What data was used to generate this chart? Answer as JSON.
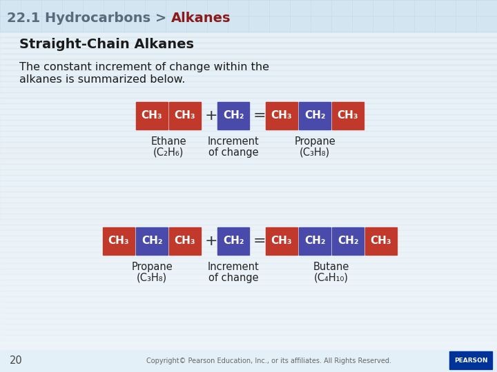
{
  "bg_top_color": "#c8dcea",
  "bg_main_color": "#edf4f9",
  "title_prefix": "22.1 Hydrocarbons > ",
  "title_suffix": "Alkanes",
  "title_prefix_color": "#5a6a7a",
  "title_suffix_color": "#8b1a1a",
  "subtitle": "Straight-Chain Alkanes",
  "body_line1": "The constant increment of change within the",
  "body_line2": "alkanes is summarized below.",
  "red_color": "#c0392b",
  "blue_color": "#4a4aaa",
  "text_color": "#333333",
  "footer_text": "Copyright© Pearson Education, Inc., or its affiliates. All Rights Reserved.",
  "page_number": "20",
  "pearson_bg": "#003399",
  "tile_color": "#dae8f0",
  "tile_line_color": "#c0d8e8",
  "row1": {
    "left_blocks": [
      "CH₃",
      "CH₃"
    ],
    "left_colors": [
      "red",
      "red"
    ],
    "mid_blocks": [
      "CH₂"
    ],
    "mid_colors": [
      "blue"
    ],
    "right_blocks": [
      "CH₃",
      "CH₂",
      "CH₃"
    ],
    "right_colors": [
      "red",
      "blue",
      "red"
    ],
    "left_label1": "Ethane",
    "left_label2": "(C₂H₆)",
    "mid_label1": "Increment",
    "mid_label2": "of change",
    "right_label1": "Propane",
    "right_label2": "(C₃H₈)"
  },
  "row2": {
    "left_blocks": [
      "CH₃",
      "CH₂",
      "CH₃"
    ],
    "left_colors": [
      "red",
      "blue",
      "red"
    ],
    "mid_blocks": [
      "CH₂"
    ],
    "mid_colors": [
      "blue"
    ],
    "right_blocks": [
      "CH₃",
      "CH₂",
      "CH₂",
      "CH₃"
    ],
    "right_colors": [
      "red",
      "blue",
      "blue",
      "red"
    ],
    "left_label1": "Propane",
    "left_label2": "(C₃H₈)",
    "mid_label1": "Increment",
    "mid_label2": "of change",
    "right_label1": "Butane",
    "right_label2": "(C₄H₁₀)"
  }
}
